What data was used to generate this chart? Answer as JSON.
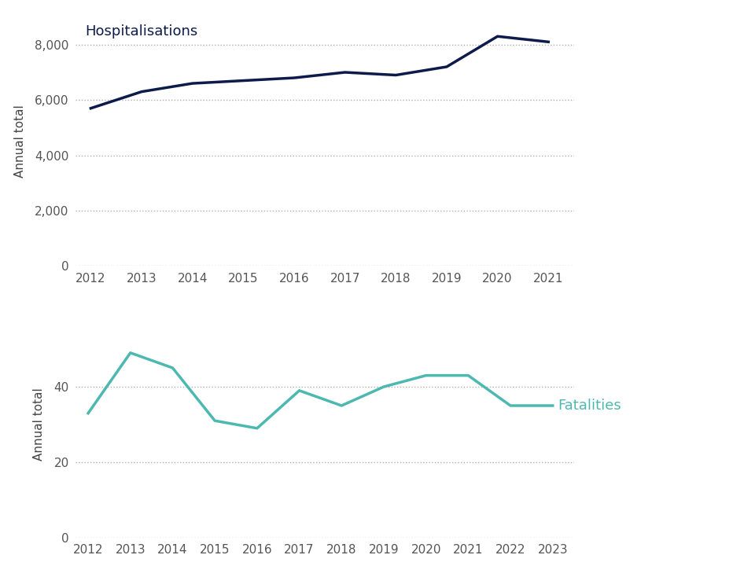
{
  "hosp_years": [
    2012,
    2013,
    2014,
    2015,
    2016,
    2017,
    2018,
    2019,
    2020,
    2021
  ],
  "hosp_values": [
    5700,
    6300,
    6600,
    6700,
    6800,
    7000,
    6900,
    7200,
    8300,
    8100
  ],
  "fat_years": [
    2012,
    2013,
    2014,
    2015,
    2016,
    2017,
    2018,
    2019,
    2020,
    2021,
    2022,
    2023
  ],
  "fat_values": [
    33,
    49,
    45,
    31,
    29,
    39,
    35,
    40,
    43,
    43,
    35,
    35
  ],
  "hosp_color": "#0d1b4b",
  "fat_color": "#4db8b0",
  "hosp_label": "Hospitalisations",
  "fat_label": "Fatalities",
  "ylabel": "Annual total",
  "hosp_ylim": [
    0,
    9000
  ],
  "hosp_yticks": [
    0,
    2000,
    4000,
    6000,
    8000
  ],
  "fat_ylim": [
    0,
    60
  ],
  "fat_yticks": [
    0,
    20,
    40
  ],
  "background_color": "#ffffff",
  "grid_color": "#b0b0b0",
  "tick_color": "#555555",
  "label_color": "#444444",
  "line_width": 2.5,
  "hosp_label_color": "#0d1b4b",
  "fat_label_color": "#4db8b0",
  "hosp_label_fontsize": 13,
  "fat_label_fontsize": 13,
  "axis_fontsize": 11,
  "tick_fontsize": 11
}
